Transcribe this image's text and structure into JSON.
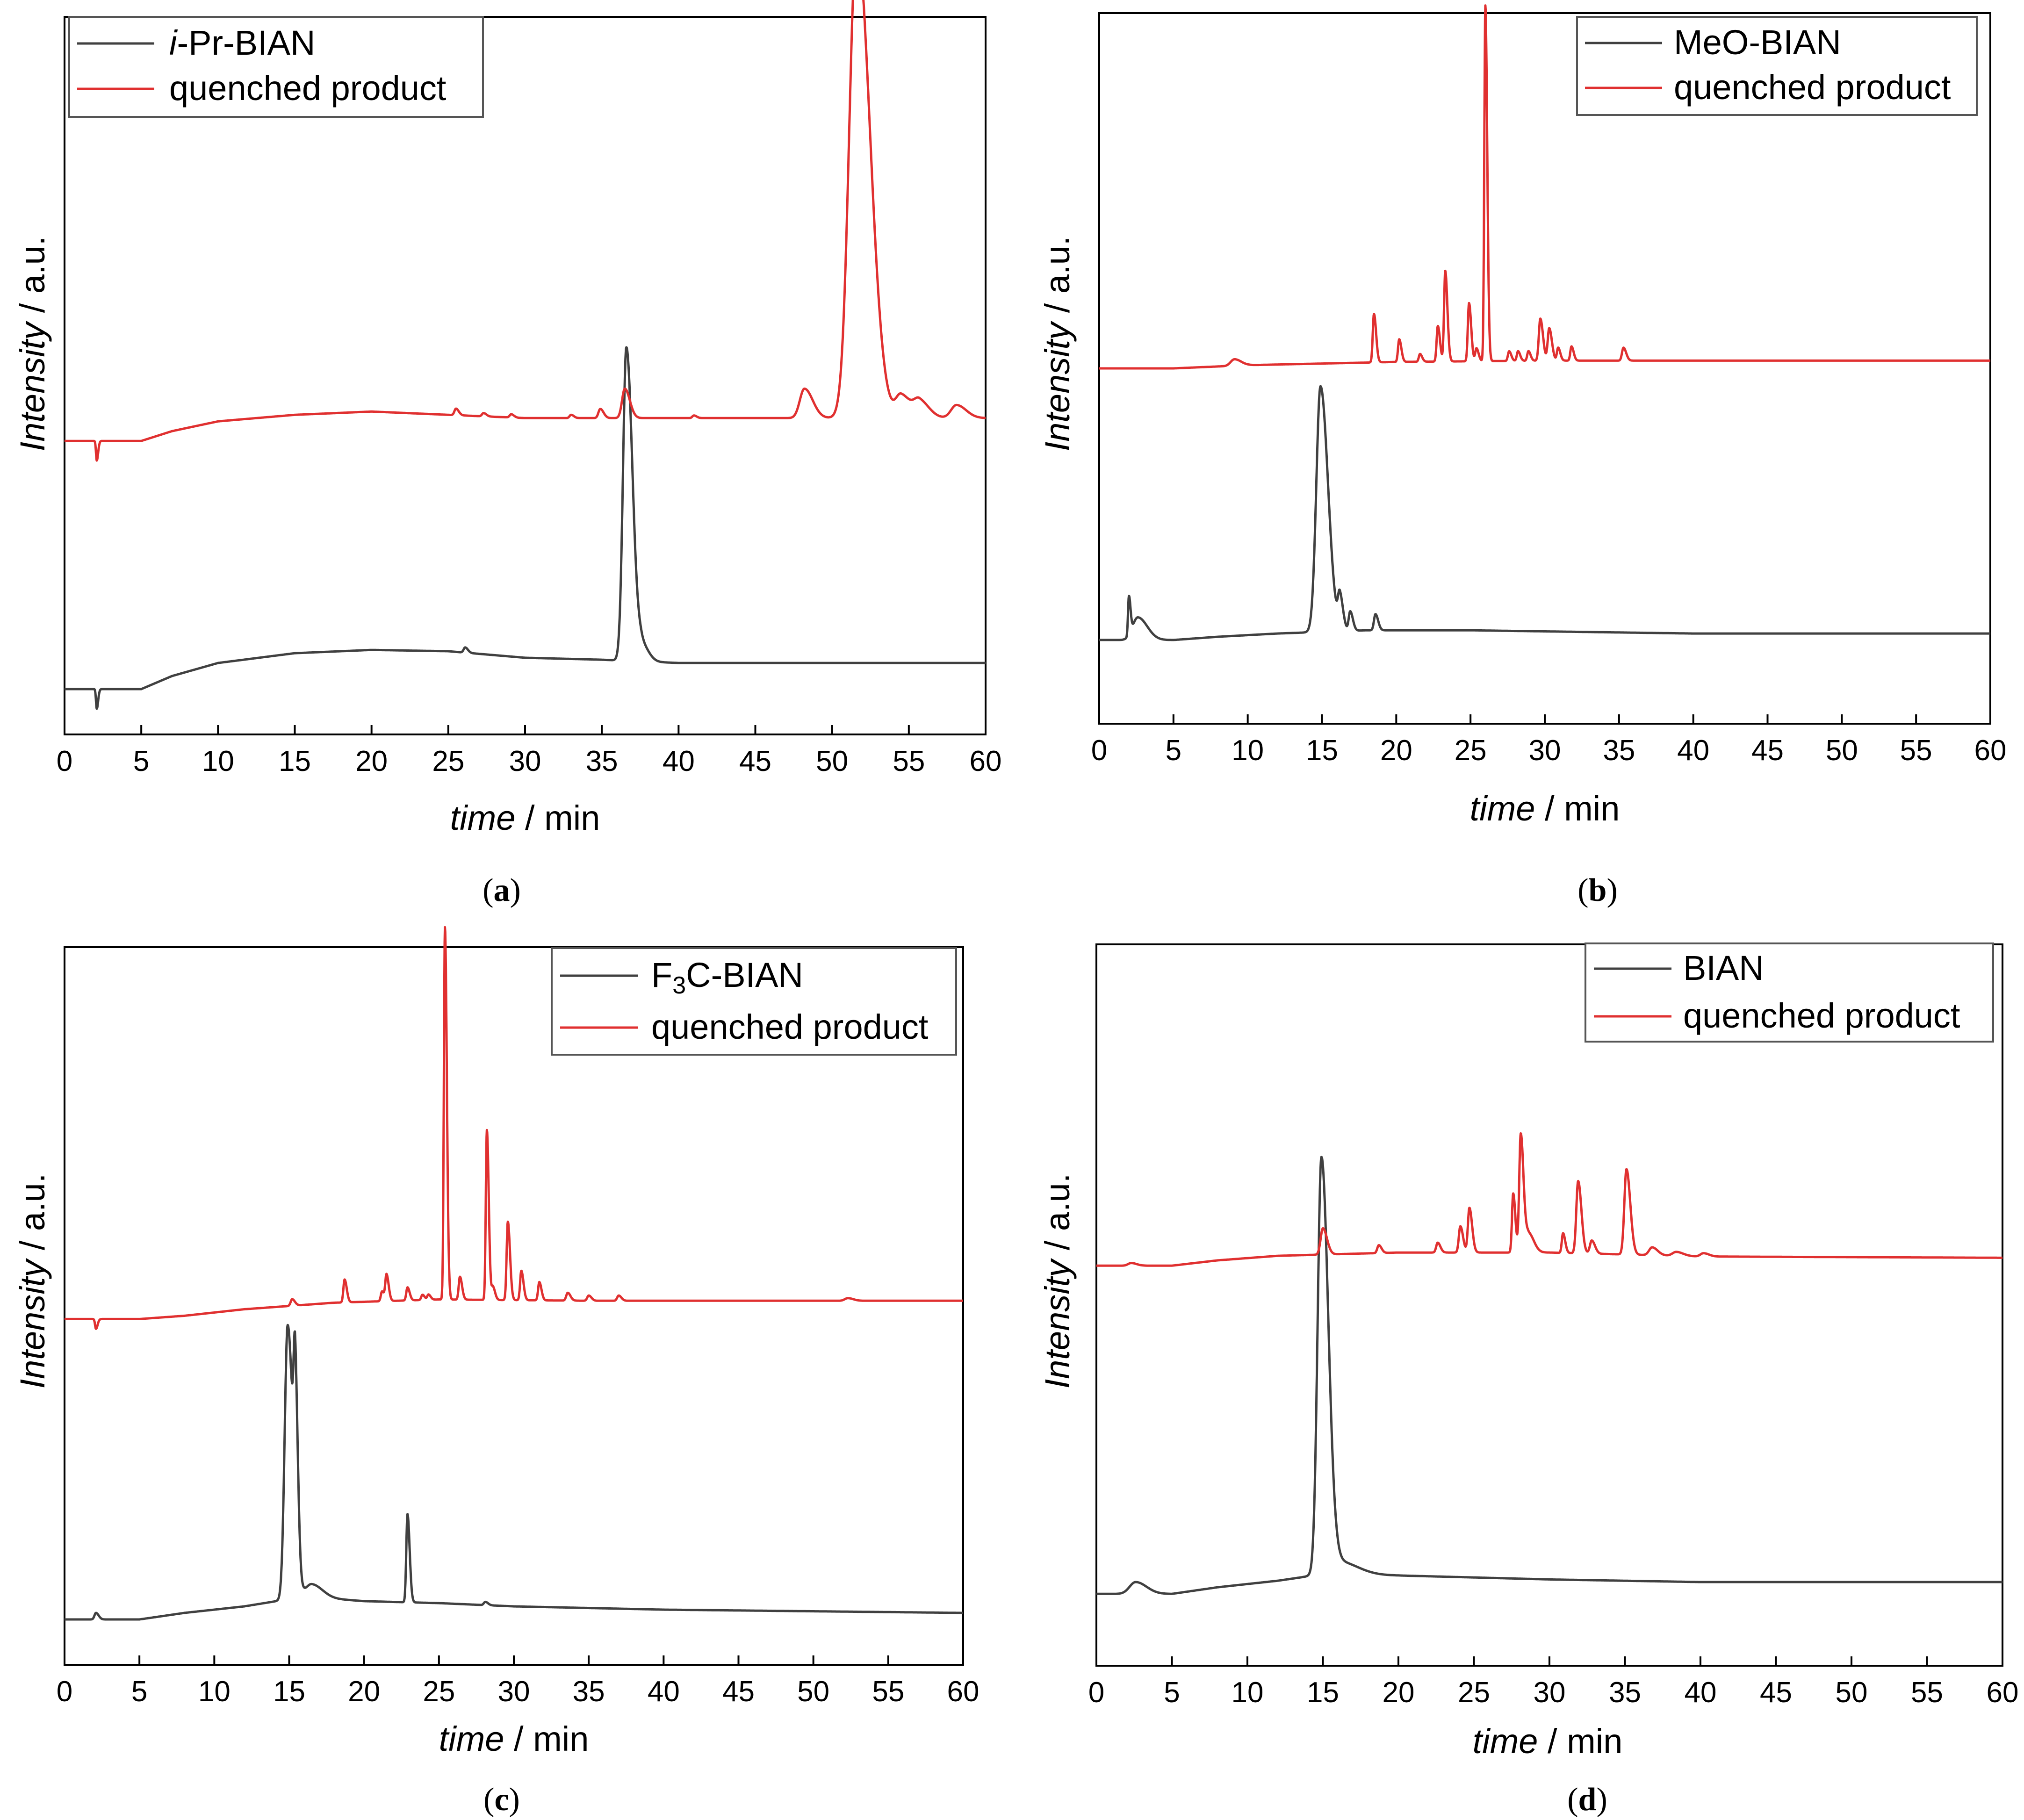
{
  "figure": {
    "colors": {
      "ligand": "#404040",
      "quenched": "#e03030",
      "axis": "#000000"
    }
  },
  "chart_data": [
    {
      "type": "line",
      "caption": "(a)",
      "caption_letter": "a",
      "xlabel_italic": "time",
      "xlabel_rest": " / min",
      "ylabel_italic": "Intensity",
      "ylabel_rest": " / a.u.",
      "xlim": [
        0,
        60
      ],
      "xticks": [
        0,
        5,
        10,
        15,
        20,
        25,
        30,
        35,
        40,
        45,
        50,
        55,
        60
      ],
      "ylim": [
        0,
        1
      ],
      "legend_position": "top-left",
      "legend": [
        {
          "prefix_italic": "i",
          "text": "-Pr-BIAN",
          "color": "#404040"
        },
        {
          "prefix_italic": "",
          "text": "quenched product",
          "color": "#e03030"
        }
      ],
      "series": [
        {
          "name": "i-Pr-BIAN",
          "color": "#404040",
          "baseline": [
            [
              0,
              0.02
            ],
            [
              2,
              0.02
            ],
            [
              5,
              0.02
            ],
            [
              7,
              0.04
            ],
            [
              10,
              0.06
            ],
            [
              15,
              0.075
            ],
            [
              20,
              0.08
            ],
            [
              25,
              0.078
            ],
            [
              30,
              0.068
            ],
            [
              35,
              0.065
            ],
            [
              40,
              0.06
            ],
            [
              50,
              0.06
            ],
            [
              60,
              0.06
            ]
          ],
          "peaks": [
            [
              2.1,
              -0.03,
              0.05
            ],
            [
              26.1,
              0.008,
              0.1
            ],
            [
              36.6,
              0.48,
              0.22
            ],
            [
              37.6,
              0.025,
              0.25
            ]
          ]
        },
        {
          "name": "quenched product",
          "color": "#e03030",
          "baseline": [
            [
              0,
              0.4
            ],
            [
              2,
              0.4
            ],
            [
              5,
              0.4
            ],
            [
              7,
              0.415
            ],
            [
              10,
              0.43
            ],
            [
              15,
              0.44
            ],
            [
              20,
              0.445
            ],
            [
              25,
              0.44
            ],
            [
              30,
              0.435
            ],
            [
              35,
              0.435
            ],
            [
              40,
              0.435
            ],
            [
              50,
              0.435
            ],
            [
              60,
              0.435
            ]
          ],
          "peaks": [
            [
              2.1,
              -0.03,
              0.05
            ],
            [
              25.5,
              0.01,
              0.1
            ],
            [
              27.3,
              0.005,
              0.1
            ],
            [
              29.1,
              0.005,
              0.1
            ],
            [
              33,
              0.005,
              0.1
            ],
            [
              34.9,
              0.014,
              0.12
            ],
            [
              36.5,
              0.045,
              0.18
            ],
            [
              41,
              0.004,
              0.1
            ],
            [
              48.2,
              0.045,
              0.3
            ],
            [
              51.6,
              0.73,
              0.48
            ],
            [
              54.5,
              0.035,
              0.35
            ],
            [
              55.7,
              0.025,
              0.35
            ],
            [
              58.1,
              0.02,
              0.35
            ]
          ]
        }
      ]
    },
    {
      "type": "line",
      "caption": "(b)",
      "caption_letter": "b",
      "xlabel_italic": "time",
      "xlabel_rest": " / min",
      "ylabel_italic": "Intensity",
      "ylabel_rest": " / a.u.",
      "xlim": [
        0,
        60
      ],
      "xticks": [
        0,
        5,
        10,
        15,
        20,
        25,
        30,
        35,
        40,
        45,
        50,
        55,
        60
      ],
      "ylim": [
        0,
        1
      ],
      "legend_position": "top-right",
      "legend": [
        {
          "prefix_italic": "",
          "text": "MeO-BIAN",
          "color": "#404040"
        },
        {
          "prefix_italic": "",
          "text": "quenched product",
          "color": "#e03030"
        }
      ],
      "series": [
        {
          "name": "MeO-BIAN",
          "color": "#404040",
          "baseline": [
            [
              0,
              0.08
            ],
            [
              2,
              0.08
            ],
            [
              5,
              0.08
            ],
            [
              8,
              0.085
            ],
            [
              12,
              0.09
            ],
            [
              18,
              0.095
            ],
            [
              25,
              0.095
            ],
            [
              40,
              0.09
            ],
            [
              60,
              0.09
            ]
          ],
          "peaks": [
            [
              2,
              0.06,
              0.06
            ],
            [
              2.6,
              0.035,
              0.35
            ],
            [
              14.9,
              0.38,
              0.28
            ],
            [
              16.2,
              0.05,
              0.12
            ],
            [
              16.9,
              0.03,
              0.1
            ],
            [
              18.6,
              0.025,
              0.1
            ]
          ]
        },
        {
          "name": "quenched product",
          "color": "#e03030",
          "baseline": [
            [
              0,
              0.5
            ],
            [
              2,
              0.5
            ],
            [
              5,
              0.5
            ],
            [
              10,
              0.505
            ],
            [
              20,
              0.51
            ],
            [
              30,
              0.512
            ],
            [
              40,
              0.512
            ],
            [
              60,
              0.512
            ]
          ],
          "peaks": [
            [
              9.1,
              0.01,
              0.25
            ],
            [
              18.5,
              0.075,
              0.08
            ],
            [
              20.2,
              0.035,
              0.08
            ],
            [
              21.6,
              0.012,
              0.08
            ],
            [
              22.8,
              0.055,
              0.08
            ],
            [
              23.3,
              0.14,
              0.08
            ],
            [
              24.9,
              0.09,
              0.08
            ],
            [
              25.4,
              0.02,
              0.08
            ],
            [
              26,
              0.55,
              0.07
            ],
            [
              27.6,
              0.015,
              0.08
            ],
            [
              28.2,
              0.015,
              0.08
            ],
            [
              28.9,
              0.015,
              0.08
            ],
            [
              29.7,
              0.065,
              0.1
            ],
            [
              30.3,
              0.05,
              0.1
            ],
            [
              30.9,
              0.02,
              0.08
            ],
            [
              31.8,
              0.022,
              0.08
            ],
            [
              35.3,
              0.02,
              0.1
            ]
          ]
        }
      ]
    },
    {
      "type": "line",
      "caption": "(c)",
      "caption_letter": "c",
      "xlabel_italic": "time",
      "xlabel_rest": " / min",
      "ylabel_italic": "Intensity",
      "ylabel_rest": " / a.u.",
      "xlim": [
        0,
        60
      ],
      "xticks": [
        0,
        5,
        10,
        15,
        20,
        25,
        30,
        35,
        40,
        45,
        50,
        55,
        60
      ],
      "ylim": [
        0,
        1
      ],
      "legend_position": "top-right",
      "legend": [
        {
          "prefix_italic": "",
          "text": "F3C-BIAN",
          "color": "#404040"
        },
        {
          "prefix_italic": "",
          "text": "quenched product",
          "color": "#e03030"
        }
      ],
      "series": [
        {
          "name": "F3C-BIAN",
          "color": "#404040",
          "baseline": [
            [
              0,
              0.02
            ],
            [
              2,
              0.02
            ],
            [
              5,
              0.02
            ],
            [
              8,
              0.03
            ],
            [
              12,
              0.04
            ],
            [
              16,
              0.055
            ],
            [
              20,
              0.048
            ],
            [
              25,
              0.045
            ],
            [
              30,
              0.04
            ],
            [
              40,
              0.035
            ],
            [
              60,
              0.03
            ]
          ],
          "peaks": [
            [
              2.1,
              0.01,
              0.1
            ],
            [
              14.9,
              0.42,
              0.2
            ],
            [
              15.4,
              0.24,
              0.1
            ],
            [
              16.5,
              0.02,
              0.4
            ],
            [
              22.9,
              0.135,
              0.08
            ],
            [
              28.1,
              0.005,
              0.1
            ]
          ]
        },
        {
          "name": "quenched product",
          "color": "#e03030",
          "baseline": [
            [
              0,
              0.48
            ],
            [
              2,
              0.48
            ],
            [
              5,
              0.48
            ],
            [
              8,
              0.485
            ],
            [
              12,
              0.495
            ],
            [
              18,
              0.505
            ],
            [
              25,
              0.51
            ],
            [
              35,
              0.508
            ],
            [
              60,
              0.508
            ]
          ],
          "peaks": [
            [
              2.1,
              -0.015,
              0.06
            ],
            [
              15.2,
              0.01,
              0.1
            ],
            [
              18.7,
              0.035,
              0.08
            ],
            [
              21.2,
              0.015,
              0.08
            ],
            [
              21.5,
              0.04,
              0.08
            ],
            [
              22.9,
              0.02,
              0.08
            ],
            [
              23.9,
              0.008,
              0.08
            ],
            [
              24.3,
              0.008,
              0.08
            ],
            [
              25.4,
              0.57,
              0.07
            ],
            [
              26.4,
              0.035,
              0.08
            ],
            [
              28.2,
              0.26,
              0.07
            ],
            [
              28.6,
              0.02,
              0.08
            ],
            [
              29.6,
              0.12,
              0.08
            ],
            [
              30.5,
              0.045,
              0.08
            ],
            [
              31.7,
              0.028,
              0.08
            ],
            [
              33.6,
              0.012,
              0.1
            ],
            [
              35,
              0.008,
              0.1
            ],
            [
              37,
              0.008,
              0.1
            ],
            [
              52.3,
              0.004,
              0.2
            ]
          ]
        }
      ]
    },
    {
      "type": "line",
      "caption": "(d)",
      "caption_letter": "d",
      "xlabel_italic": "time",
      "xlabel_rest": " / min",
      "ylabel_italic": "Intensity",
      "ylabel_rest": " / a.u.",
      "xlim": [
        0,
        60
      ],
      "xticks": [
        0,
        5,
        10,
        15,
        20,
        25,
        30,
        35,
        40,
        45,
        50,
        55,
        60
      ],
      "ylim": [
        0,
        1
      ],
      "legend_position": "top-right",
      "legend": [
        {
          "prefix_italic": "",
          "text": "BIAN",
          "color": "#404040"
        },
        {
          "prefix_italic": "",
          "text": "quenched product",
          "color": "#e03030"
        }
      ],
      "series": [
        {
          "name": "BIAN",
          "color": "#404040",
          "baseline": [
            [
              0,
              0.06
            ],
            [
              2,
              0.06
            ],
            [
              5,
              0.06
            ],
            [
              8,
              0.07
            ],
            [
              12,
              0.08
            ],
            [
              15,
              0.09
            ],
            [
              20,
              0.088
            ],
            [
              30,
              0.082
            ],
            [
              40,
              0.078
            ],
            [
              60,
              0.078
            ]
          ],
          "peaks": [
            [
              2.6,
              0.018,
              0.4
            ],
            [
              14.9,
              0.63,
              0.25
            ],
            [
              16,
              0.02,
              0.7
            ]
          ]
        },
        {
          "name": "quenched product",
          "color": "#e03030",
          "baseline": [
            [
              0,
              0.56
            ],
            [
              2,
              0.56
            ],
            [
              5,
              0.56
            ],
            [
              8,
              0.568
            ],
            [
              12,
              0.575
            ],
            [
              20,
              0.58
            ],
            [
              30,
              0.58
            ],
            [
              40,
              0.574
            ],
            [
              60,
              0.572
            ]
          ],
          "peaks": [
            [
              2.3,
              0.004,
              0.2
            ],
            [
              15,
              0.04,
              0.15
            ],
            [
              18.7,
              0.012,
              0.1
            ],
            [
              22.6,
              0.015,
              0.1
            ],
            [
              24.1,
              0.04,
              0.1
            ],
            [
              24.7,
              0.068,
              0.1
            ],
            [
              27.6,
              0.09,
              0.08
            ],
            [
              28.1,
              0.18,
              0.1
            ],
            [
              28.6,
              0.03,
              0.2
            ],
            [
              30.9,
              0.03,
              0.08
            ],
            [
              31.9,
              0.11,
              0.12
            ],
            [
              32.8,
              0.02,
              0.12
            ],
            [
              35.1,
              0.13,
              0.14
            ],
            [
              36.8,
              0.012,
              0.2
            ],
            [
              38.4,
              0.006,
              0.25
            ],
            [
              40.2,
              0.005,
              0.2
            ]
          ]
        }
      ]
    }
  ]
}
